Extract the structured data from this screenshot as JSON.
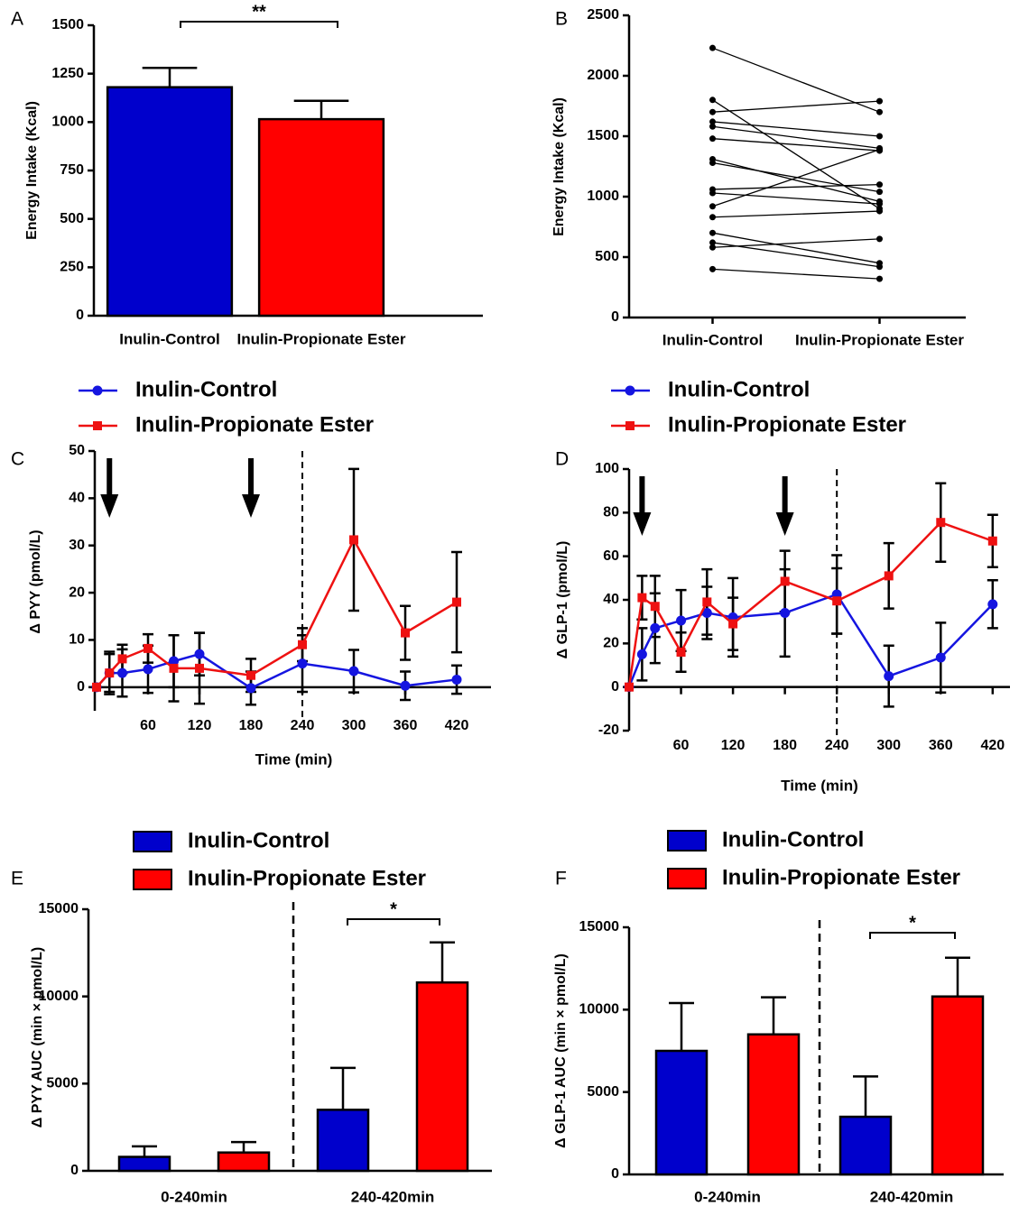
{
  "chart_data": [
    {
      "type": "bar",
      "label": "A",
      "y_label": "Energy Intake (Kcal)",
      "categories": [
        "Inulin-Control",
        "Inulin-Propionate Ester"
      ],
      "values": [
        1180,
        1015
      ],
      "errors": [
        100,
        95
      ],
      "colors": [
        "#0000cc",
        "#ff0000"
      ],
      "ylim": [
        0,
        1500
      ],
      "yticks": [
        0,
        250,
        500,
        750,
        1000,
        1250,
        1500
      ],
      "significance": "**"
    },
    {
      "type": "paired",
      "label": "B",
      "y_label": "Energy Intake (Kcal)",
      "categories": [
        "Inulin-Control",
        "Inulin-Propionate Ester"
      ],
      "color": "#000000",
      "series": [
        {
          "values": [
            2230,
            1700
          ]
        },
        {
          "values": [
            1800,
            900
          ]
        },
        {
          "values": [
            1700,
            1790
          ]
        },
        {
          "values": [
            1620,
            1500
          ]
        },
        {
          "values": [
            1580,
            1400
          ]
        },
        {
          "values": [
            1480,
            1380
          ]
        },
        {
          "values": [
            1310,
            960
          ]
        },
        {
          "values": [
            1280,
            1040
          ]
        },
        {
          "values": [
            1060,
            1100
          ]
        },
        {
          "values": [
            1030,
            940
          ]
        },
        {
          "values": [
            920,
            1390
          ]
        },
        {
          "values": [
            830,
            880
          ]
        },
        {
          "values": [
            700,
            450
          ]
        },
        {
          "values": [
            620,
            420
          ]
        },
        {
          "values": [
            580,
            650
          ]
        },
        {
          "values": [
            400,
            320
          ]
        }
      ],
      "ylim": [
        0,
        2500
      ],
      "yticks": [
        0,
        500,
        1000,
        1500,
        2000,
        2500
      ]
    },
    {
      "type": "line",
      "label": "C",
      "y_label": "Δ PYY (pmol/L)",
      "x_label": "Time (min)",
      "x": [
        0,
        15,
        30,
        60,
        90,
        120,
        180,
        240,
        300,
        360,
        420
      ],
      "xlim": [
        0,
        460
      ],
      "xticks": [
        60,
        120,
        180,
        240,
        300,
        360,
        420
      ],
      "ylim": [
        -5,
        50
      ],
      "yticks": [
        0,
        10,
        20,
        30,
        40,
        50
      ],
      "arrows": [
        15,
        180
      ],
      "vline": 240,
      "series": [
        {
          "name": "Inulin-Control",
          "color": "#1515e0",
          "marker": "circle",
          "values": [
            0,
            3,
            3,
            3.8,
            5.5,
            7,
            -0.2,
            5,
            3.4,
            0.3,
            1.6
          ],
          "errors": [
            null,
            4.5,
            5,
            5,
            5.5,
            4.5,
            3.5,
            6,
            4.5,
            3,
            3
          ]
        },
        {
          "name": "Inulin-Propionate Ester",
          "color": "#ee1111",
          "marker": "square",
          "values": [
            0,
            3,
            6,
            8.2,
            4,
            4,
            2.5,
            9,
            31.2,
            11.5,
            18
          ],
          "errors": [
            null,
            4,
            3,
            3,
            7,
            7.5,
            3.5,
            3.5,
            15,
            5.7,
            10.6
          ]
        }
      ]
    },
    {
      "type": "line",
      "label": "D",
      "y_label": "Δ GLP-1 (pmol/L)",
      "x_label": "Time (min)",
      "x": [
        0,
        15,
        30,
        60,
        90,
        120,
        180,
        240,
        300,
        360,
        420
      ],
      "xlim": [
        0,
        440
      ],
      "xticks": [
        60,
        120,
        180,
        240,
        300,
        360,
        420
      ],
      "ylim": [
        -20,
        100
      ],
      "yticks": [
        -20,
        0,
        20,
        40,
        60,
        80,
        100
      ],
      "arrows": [
        15,
        180
      ],
      "vline": 240,
      "series": [
        {
          "name": "Inulin-Control",
          "color": "#1515e0",
          "marker": "circle",
          "values": [
            0,
            15,
            27,
            30.5,
            34,
            32,
            34,
            42.5,
            5,
            13.5,
            38
          ],
          "errors": [
            null,
            12,
            16,
            14,
            12,
            18,
            20,
            18,
            14,
            16,
            11
          ]
        },
        {
          "name": "Inulin-Propionate Ester",
          "color": "#ee1111",
          "marker": "square",
          "values": [
            0,
            41,
            37,
            16,
            39,
            29,
            48.5,
            39.5,
            51,
            75.5,
            67
          ],
          "errors": [
            null,
            10,
            14,
            9,
            15,
            12,
            14,
            15,
            15,
            18,
            12
          ]
        }
      ]
    },
    {
      "type": "grouped_bar",
      "label": "E",
      "y_label": "Δ PYY AUC (min × pmol/L)",
      "categories": [
        "0-240min",
        "240-420min"
      ],
      "series": [
        {
          "name": "Inulin-Control",
          "color": "#0000cc",
          "values": [
            800,
            3500
          ],
          "errors": [
            600,
            2400
          ]
        },
        {
          "name": "Inulin-Propionate Ester",
          "color": "#ff0000",
          "values": [
            1050,
            10800
          ],
          "errors": [
            600,
            2300
          ]
        }
      ],
      "ylim": [
        0,
        15000
      ],
      "yticks": [
        0,
        5000,
        10000,
        15000
      ],
      "significance": "*"
    },
    {
      "type": "grouped_bar",
      "label": "F",
      "y_label": "Δ GLP-1 AUC (min × pmol/L)",
      "categories": [
        "0-240min",
        "240-420min"
      ],
      "series": [
        {
          "name": "Inulin-Control",
          "color": "#0000cc",
          "values": [
            7500,
            3500
          ],
          "errors": [
            2900,
            2450
          ]
        },
        {
          "name": "Inulin-Propionate Ester",
          "color": "#ff0000",
          "values": [
            8500,
            10800
          ],
          "errors": [
            2250,
            2350
          ]
        }
      ],
      "ylim": [
        0,
        15000
      ],
      "yticks": [
        0,
        5000,
        10000,
        15000
      ],
      "significance": "*"
    }
  ]
}
